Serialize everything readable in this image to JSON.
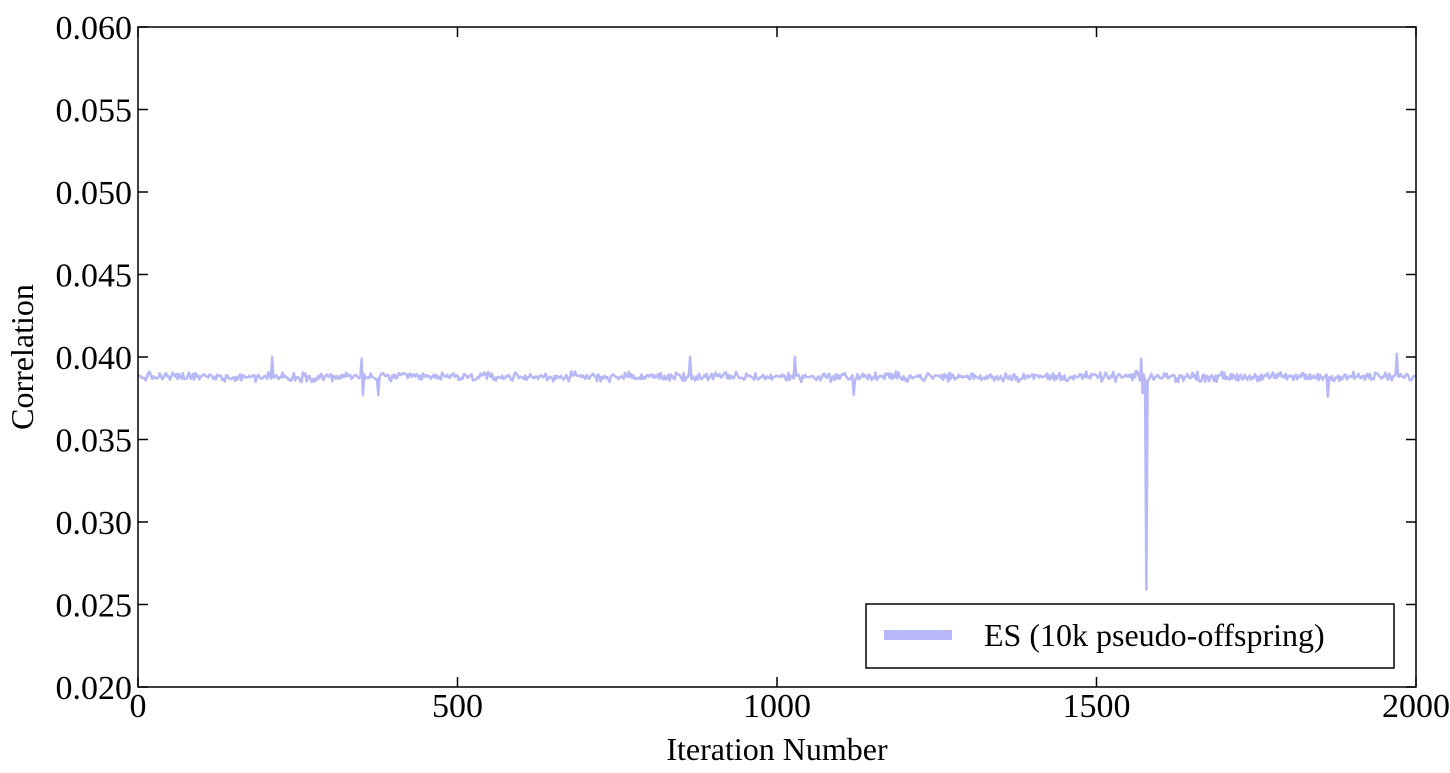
{
  "chart_data": {
    "type": "line",
    "title": "",
    "xlabel": "Iteration Number",
    "ylabel": "Correlation",
    "xlim": [
      0,
      2000
    ],
    "ylim": [
      0.02,
      0.06
    ],
    "x_ticks": [
      0,
      500,
      1000,
      1500,
      2000
    ],
    "x_tick_labels": [
      "0",
      "500",
      "1000",
      "1500",
      "2000"
    ],
    "y_ticks": [
      0.02,
      0.025,
      0.03,
      0.035,
      0.04,
      0.045,
      0.05,
      0.055,
      0.06
    ],
    "y_tick_labels": [
      "0.020",
      "0.025",
      "0.030",
      "0.035",
      "0.040",
      "0.045",
      "0.050",
      "0.055",
      "0.060"
    ],
    "grid": false,
    "legend_position": "bottom-right",
    "series": [
      {
        "name": "ES (10k pseudo-offspring)",
        "color": "#b8b8f8",
        "baseline": 0.0388,
        "noise_amplitude": 0.0004,
        "x_step": 2,
        "anomalies": [
          {
            "x": 210,
            "y": 0.04
          },
          {
            "x": 350,
            "y": 0.0399
          },
          {
            "x": 352,
            "y": 0.0377
          },
          {
            "x": 376,
            "y": 0.0377
          },
          {
            "x": 864,
            "y": 0.04
          },
          {
            "x": 1028,
            "y": 0.04
          },
          {
            "x": 1120,
            "y": 0.0377
          },
          {
            "x": 1547,
            "y": 0.0404
          },
          {
            "x": 1570,
            "y": 0.0399
          },
          {
            "x": 1572,
            "y": 0.0378
          },
          {
            "x": 1576,
            "y": 0.0385
          },
          {
            "x": 1578,
            "y": 0.0259
          },
          {
            "x": 1580,
            "y": 0.0386
          },
          {
            "x": 1862,
            "y": 0.0376
          },
          {
            "x": 1970,
            "y": 0.0402
          }
        ]
      }
    ]
  }
}
